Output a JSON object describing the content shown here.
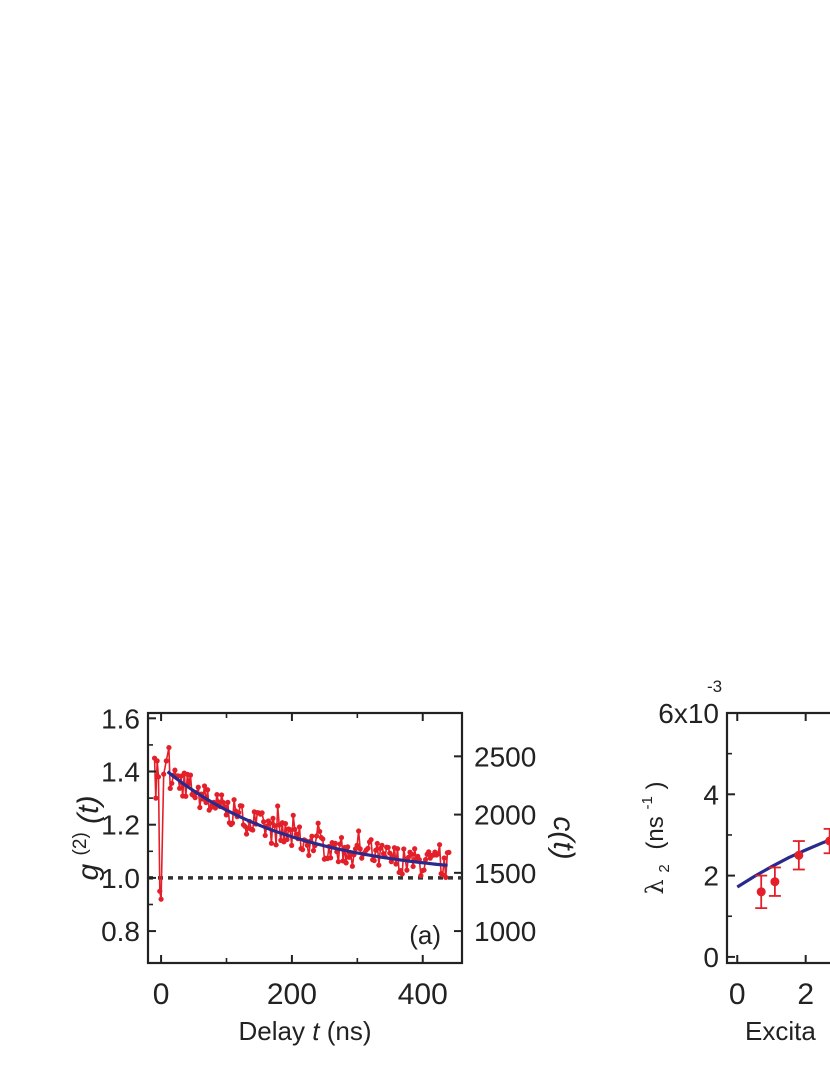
{
  "chart_data": [
    {
      "type": "scatter",
      "panel_label": "(a)",
      "xlabel": "Delay t (ns)",
      "xlabel_parts": {
        "word": "Delay",
        "var": "t",
        "unit": "(ns)"
      },
      "ylabel": "g(2)(t)",
      "ylabel_parts": {
        "base": "g",
        "sup": "(2)",
        "arg": "(t)"
      },
      "y2label": "c(t)",
      "xlim": [
        -20,
        460
      ],
      "ylim": [
        0.68,
        1.62
      ],
      "y2lim": [
        726,
        2872
      ],
      "xticks": [
        0,
        200,
        400
      ],
      "yticks": [
        0.8,
        1.0,
        1.2,
        1.4,
        1.6
      ],
      "y2ticks": [
        1000,
        1500,
        2000,
        2500
      ],
      "ytick_labels": [
        "0.8",
        "1.0",
        "1.2",
        "1.4",
        "1.6"
      ],
      "xtick_labels": [
        "0",
        "200",
        "400"
      ],
      "y2tick_labels": [
        "1000",
        "1500",
        "2000",
        "2500"
      ],
      "reference_line": {
        "y": 1.0,
        "style": "dotted"
      },
      "fit": {
        "model": "1 + A*exp(-t/tau)",
        "A": 0.42,
        "tau": 200,
        "x_range": [
          10,
          440
        ]
      },
      "noise_model": {
        "amplitude": 0.03,
        "points": 180
      },
      "series": [
        {
          "name": "",
          "role": "data",
          "color": "#e3202a",
          "x": [
            -10,
            -8,
            -6,
            -4,
            -2,
            0,
            4,
            8,
            12
          ],
          "y": [
            1.45,
            1.3,
            1.44,
            1.38,
            0.95,
            0.92,
            1.39,
            1.44,
            1.49
          ]
        }
      ],
      "colors": {
        "data": "#e3202a",
        "fit": "#2a2a8c",
        "reference": "#333333"
      }
    },
    {
      "type": "scatter",
      "ylabel": "λ2 (ns-1)",
      "ylabel_parts": {
        "base": "λ",
        "sub": "2",
        "unit_open": "(ns",
        "sup": "-1",
        "unit_close": ")"
      },
      "xlabel": "Excita",
      "xlim": [
        -0.3,
        3.5
      ],
      "ylim": [
        -0.15,
        6.0
      ],
      "xticks": [
        0,
        2
      ],
      "xtick_labels": [
        "0",
        "2"
      ],
      "yticks": [
        0,
        2,
        4,
        6
      ],
      "ytick_labels": [
        "0",
        "2",
        "4",
        "6x10"
      ],
      "ytick_top_exp": "-3",
      "series": [
        {
          "name": "",
          "color": "#e3202a",
          "x": [
            0.7,
            1.1,
            1.8,
            2.7
          ],
          "y": [
            1.6,
            1.85,
            2.5,
            2.85
          ],
          "err": [
            0.4,
            0.35,
            0.35,
            0.3
          ]
        }
      ],
      "fit": {
        "x": [
          0,
          0.5,
          1.0,
          1.5,
          2.0,
          2.5,
          3.0,
          3.5
        ],
        "y": [
          1.72,
          1.98,
          2.22,
          2.44,
          2.63,
          2.81,
          2.97,
          3.1
        ]
      },
      "colors": {
        "data": "#e3202a",
        "fit": "#2a2a8c"
      }
    }
  ]
}
